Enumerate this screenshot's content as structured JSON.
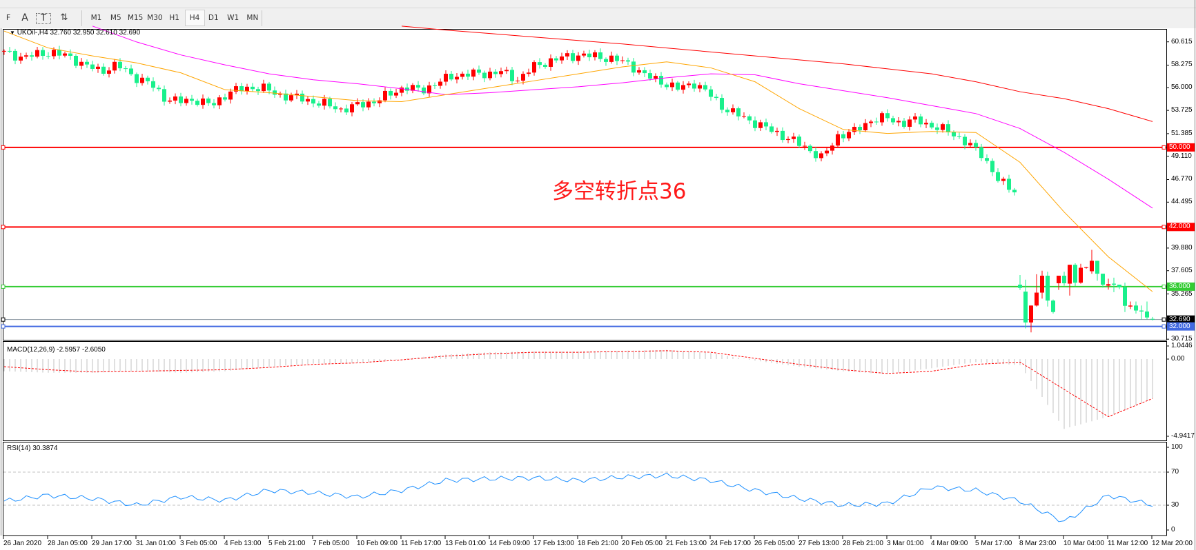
{
  "toolbar": {
    "timeframes": [
      "M1",
      "M5",
      "M15",
      "M30",
      "H1",
      "H4",
      "D1",
      "W1",
      "MN"
    ],
    "active_timeframe": "H4",
    "tools": [
      {
        "name": "fibo-tool-icon",
        "glyph": "F"
      },
      {
        "name": "text-tool-icon",
        "glyph": "A"
      },
      {
        "name": "text-label-tool-icon",
        "glyph": "T"
      },
      {
        "name": "arrows-tool-icon",
        "glyph": "⇅"
      }
    ]
  },
  "main": {
    "symbol_header": "UKOil-,H4  32.760 32.950 32.610 32.690",
    "annotation": "多空转折点36",
    "price_ticks": [
      "60.615",
      "58.275",
      "56.000",
      "53.725",
      "51.385",
      "49.110",
      "46.770",
      "44.495",
      "39.880",
      "37.605",
      "35.265",
      "30.715"
    ],
    "levels": [
      {
        "price": 50.0,
        "label": "50.000",
        "color": "#ff0000",
        "text_color": "#ffffff"
      },
      {
        "price": 42.0,
        "label": "42.000",
        "color": "#ff0000",
        "text_color": "#ffffff"
      },
      {
        "price": 36.0,
        "label": "36.000",
        "color": "#33cc33",
        "text_color": "#ffffff"
      },
      {
        "price": 32.69,
        "label": "32.690",
        "color": "#000000",
        "line_color": "#8a96a0",
        "text_color": "#ffffff"
      },
      {
        "price": 32.0,
        "label": "32.000",
        "color": "#4169e1",
        "text_color": "#ffffff"
      }
    ],
    "colors": {
      "bull": "#ff0000",
      "bear": "#19f08c",
      "ma_fast": "#ffa500",
      "ma_mid": "#ff00ff",
      "ma_slow": "#ff0000"
    }
  },
  "macd": {
    "label": "MACD(12,26,9) -2.5957 -2.6050",
    "ticks": [
      "1.0446",
      "0.00",
      "-4.9417"
    ],
    "histogram_color": "#c0c0c0",
    "signal_color": "#ff0000"
  },
  "rsi": {
    "label": "RSI(14) 30.3874",
    "ticks": [
      "100",
      "70",
      "30",
      "0"
    ],
    "color": "#1e90ff"
  },
  "date_labels": [
    "26 Jan 2020",
    "28 Jan 05:00",
    "29 Jan 17:00",
    "31 Jan 01:00",
    "3 Feb 05:00",
    "4 Feb 13:00",
    "5 Feb 21:00",
    "7 Feb 05:00",
    "10 Feb 09:00",
    "11 Feb 17:00",
    "13 Feb 01:00",
    "14 Feb 09:00",
    "17 Feb 13:00",
    "18 Feb 21:00",
    "20 Feb 05:00",
    "21 Feb 13:00",
    "24 Feb 17:00",
    "26 Feb 05:00",
    "27 Feb 13:00",
    "28 Feb 21:00",
    "3 Mar 01:00",
    "4 Mar 09:00",
    "5 Mar 17:00",
    "8 Mar 23:00",
    "10 Mar 04:00",
    "11 Mar 12:00",
    "12 Mar 20:00"
  ],
  "chart_data": {
    "type": "candlestick",
    "ylim": [
      30.5,
      62.2
    ],
    "closes_before_gap": [
      59.5,
      59.1,
      59.3,
      59.6,
      59.1,
      58.35,
      57.6,
      58.35,
      57.2,
      56.5,
      55.0,
      54.6,
      54.8,
      54.2,
      55.6,
      55.9,
      56.1,
      55.3,
      55.1,
      54.7,
      54.35,
      53.8,
      54.2,
      54.6,
      55.3,
      56.1,
      55.7,
      56.5,
      57.2,
      57.4,
      57.4,
      57.6,
      56.8,
      58.1,
      58.7,
      59.1,
      59.3,
      59.1,
      58.9,
      58.35,
      57.2,
      56.6,
      55.9,
      56.5,
      55.3,
      53.8,
      53.1,
      52.3,
      51.6,
      50.8,
      50.0,
      48.9,
      51.2,
      51.6,
      52.7,
      53.0,
      52.4,
      52.8,
      52.0,
      51.6,
      50.4,
      49.3,
      46.6,
      45.7
    ],
    "ohlc_from_8_mar": [
      [
        36.2,
        37.17,
        35.67,
        35.87
      ],
      [
        35.5,
        36.7,
        31.8,
        32.4
      ],
      [
        32.4,
        34.1,
        31.4,
        34.1
      ],
      [
        34.1,
        37.25,
        34.0,
        35.4
      ],
      [
        35.4,
        37.6,
        34.8,
        37.1
      ],
      [
        37.1,
        37.5,
        34.0,
        34.6
      ],
      [
        34.6,
        34.7,
        33.3,
        33.45
      ],
      [
        36.34,
        37.1,
        35.67,
        37.1
      ],
      [
        37.1,
        37.5,
        36.1,
        36.34
      ],
      [
        36.3,
        38.2,
        35.1,
        38.2
      ],
      [
        38.2,
        38.35,
        36.06,
        36.4
      ],
      [
        36.4,
        38.3,
        36.3,
        37.9
      ],
      [
        37.9,
        38.0,
        37.8,
        37.95
      ],
      [
        37.55,
        39.7,
        37.3,
        38.6
      ],
      [
        38.6,
        38.6,
        36.6,
        37.3
      ],
      [
        37.3,
        37.3,
        35.9,
        36.2
      ],
      [
        36.1,
        36.8,
        35.7,
        36.25
      ],
      [
        36.3,
        36.9,
        35.45,
        36.2
      ],
      [
        36.2,
        36.2,
        35.75,
        35.95
      ],
      [
        35.95,
        36.4,
        33.45,
        34.07
      ],
      [
        34.0,
        34.5,
        33.75,
        34.1
      ],
      [
        34.1,
        34.5,
        33.3,
        33.6
      ],
      [
        33.6,
        34.1,
        32.7,
        33.5
      ],
      [
        33.5,
        34.5,
        32.7,
        32.9
      ],
      [
        32.76,
        32.95,
        32.61,
        32.69
      ]
    ],
    "ma_fast_at_date_labels": [
      61.7,
      60.0,
      59.2,
      58.5,
      57.5,
      55.8,
      55.5,
      55.1,
      54.7,
      54.6,
      55.3,
      56.0,
      56.7,
      57.4,
      58.1,
      58.6,
      58.0,
      56.6,
      53.9,
      51.8,
      51.4,
      51.6,
      51.5,
      48.5,
      43.5,
      39.0,
      35.5
    ],
    "ma_mid_at_date_labels": [
      null,
      null,
      62.2,
      60.6,
      59.3,
      58.3,
      57.4,
      56.8,
      56.4,
      55.9,
      55.3,
      55.5,
      55.8,
      56.1,
      56.5,
      57.0,
      57.4,
      57.3,
      56.4,
      55.7,
      55.0,
      54.2,
      53.4,
      51.9,
      49.5,
      46.8,
      43.9
    ],
    "ma_slow_at_date_labels": [
      null,
      null,
      null,
      null,
      null,
      null,
      null,
      null,
      null,
      62.2,
      61.8,
      61.45,
      61.1,
      60.75,
      60.4,
      60.0,
      59.6,
      59.2,
      58.8,
      58.4,
      57.9,
      57.4,
      56.6,
      55.6,
      54.9,
      53.9,
      52.6
    ],
    "macd_hist_at_date_labels": [
      -0.8,
      -0.9,
      -0.9,
      -0.8,
      -0.9,
      -0.8,
      -0.5,
      -0.3,
      -0.25,
      0.0,
      0.3,
      0.45,
      0.5,
      0.5,
      0.55,
      0.6,
      0.4,
      -0.1,
      -0.5,
      -0.8,
      -1.0,
      -0.6,
      -0.2,
      -0.4,
      -4.6,
      -3.8,
      -2.6
    ],
    "macd_signal_at_date_labels": [
      -0.5,
      -0.7,
      -0.85,
      -0.8,
      -0.75,
      -0.7,
      -0.55,
      -0.35,
      -0.25,
      -0.05,
      0.2,
      0.35,
      0.45,
      0.45,
      0.5,
      0.55,
      0.45,
      0.05,
      -0.35,
      -0.7,
      -0.95,
      -0.8,
      -0.35,
      -0.2,
      -2.0,
      -3.8,
      -2.6
    ],
    "rsi_at_date_labels": [
      35,
      42,
      38,
      30,
      40,
      36,
      48,
      45,
      40,
      48,
      60,
      62,
      63,
      60,
      64,
      66,
      60,
      48,
      38,
      30,
      32,
      52,
      48,
      35,
      10,
      42,
      30.4
    ]
  }
}
